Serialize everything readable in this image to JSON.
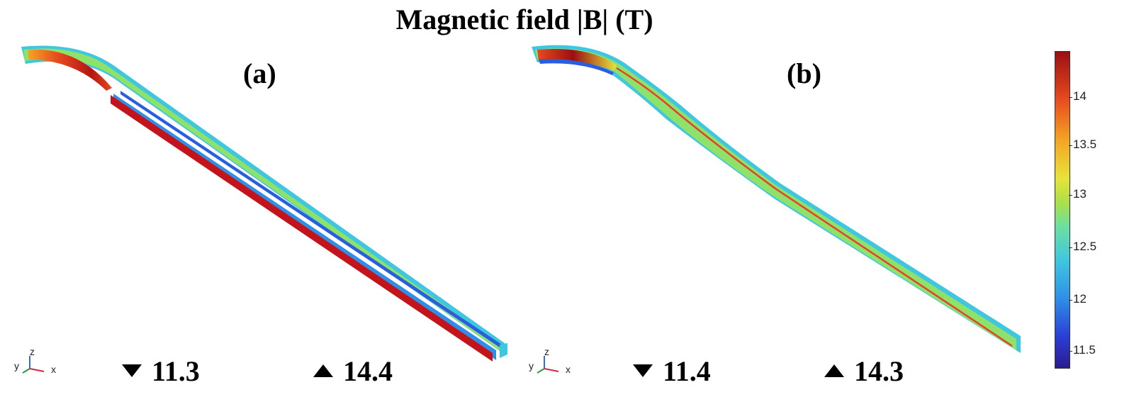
{
  "title": "Magnetic field |B| (T)",
  "panels": [
    {
      "label": "(a)",
      "min": "11.3",
      "max": "14.4"
    },
    {
      "label": "(b)",
      "min": "11.4",
      "max": "14.3"
    }
  ],
  "axes_triad": {
    "x": "x",
    "y": "y",
    "z": "z"
  },
  "colorbar": {
    "ticks": [
      "14",
      "13.5",
      "13",
      "12.5",
      "12",
      "11.5"
    ],
    "range": [
      11.3,
      14.4
    ],
    "colormap": [
      "#2a1b8e",
      "#2a3fd6",
      "#2f8fe8",
      "#3fc6e0",
      "#6ee0a0",
      "#a8e04a",
      "#e8e33a",
      "#f3a523",
      "#e84a1e",
      "#9a0f12"
    ]
  }
}
